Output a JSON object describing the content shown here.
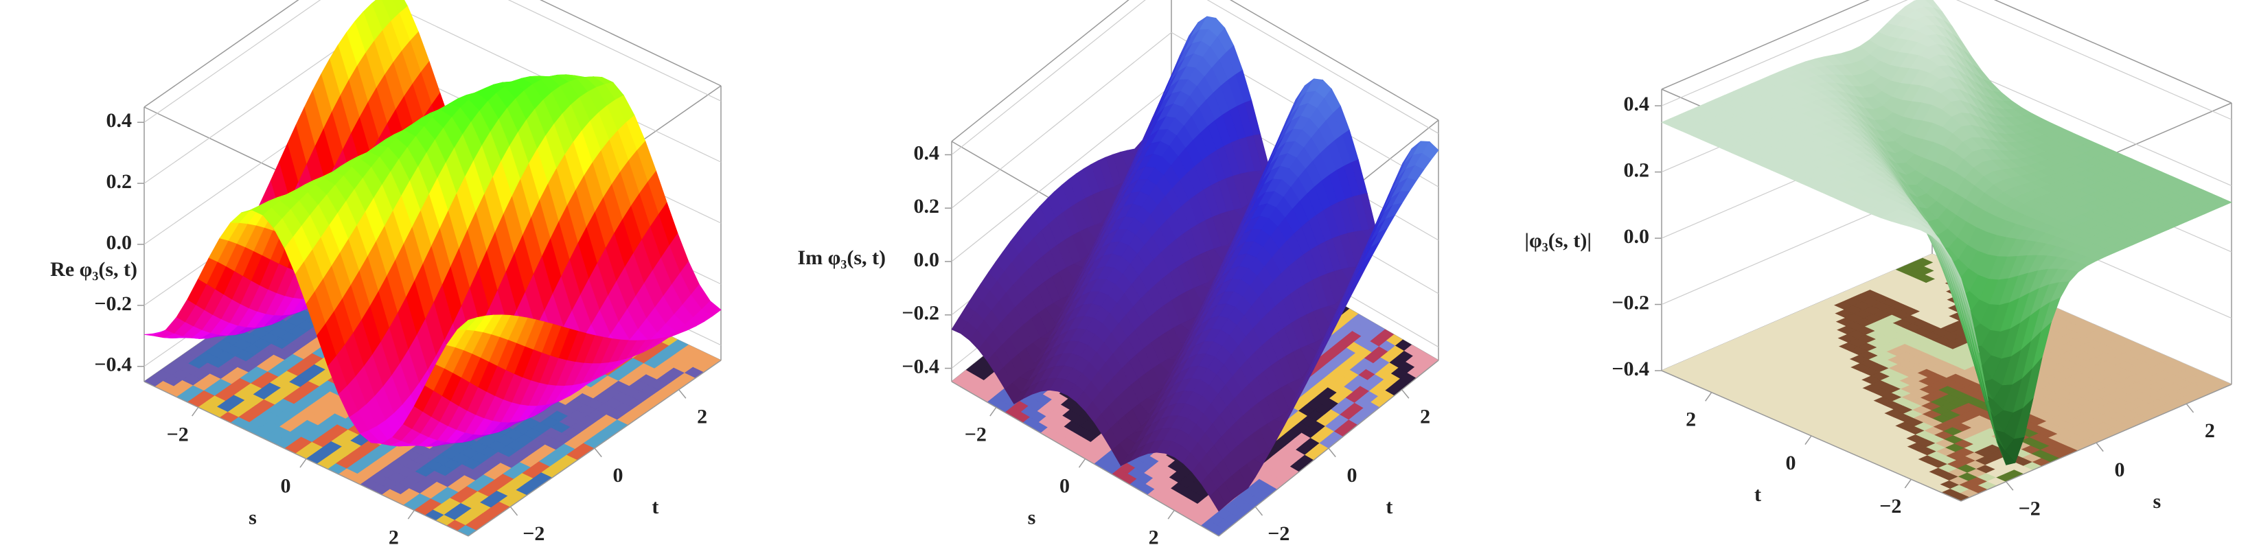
{
  "chart_data": [
    {
      "type": "surface3d",
      "xlabel": "s",
      "ylabel": "t",
      "zlabel": "Re φ₃(s, t)",
      "xlim": [
        -3,
        3
      ],
      "ylim": [
        -3,
        3
      ],
      "zlim": [
        -0.45,
        0.45
      ],
      "xticks": [
        {
          "value": -2,
          "label": "−2"
        },
        0,
        2
      ],
      "yticks": [
        {
          "value": -2,
          "label": "−2"
        },
        0,
        2
      ],
      "zticks": [
        {
          "value": -0.4,
          "label": "−0.4"
        },
        {
          "value": -0.2,
          "label": "−0.2"
        },
        {
          "value": 0,
          "label": "0.0"
        },
        0.2,
        0.4
      ],
      "grid": true
    },
    {
      "type": "surface3d",
      "xlabel": "s",
      "ylabel": "t",
      "zlabel": "Im φ₃(s, t)",
      "xlim": [
        -3,
        3
      ],
      "ylim": [
        -3,
        3
      ],
      "zlim": [
        -0.45,
        0.45
      ],
      "xticks": [
        {
          "value": -2,
          "label": "−2"
        },
        0,
        2
      ],
      "yticks": [
        {
          "value": -2,
          "label": "−2"
        },
        0,
        2
      ],
      "zticks": [
        {
          "value": -0.4,
          "label": "−0.4"
        },
        {
          "value": -0.2,
          "label": "−0.2"
        },
        {
          "value": 0,
          "label": "0.0"
        },
        0.2,
        0.4
      ],
      "grid": true
    },
    {
      "type": "surface3d",
      "xlabel": "s",
      "ylabel": "t",
      "zlabel": "|φ₃(s, t)|",
      "xlim": [
        -3,
        3
      ],
      "ylim": [
        -3,
        3
      ],
      "zlim": [
        -0.4,
        0.45
      ],
      "xticks": [
        {
          "value": -2,
          "label": "−2"
        },
        0,
        2
      ],
      "yticks": [
        {
          "value": -2,
          "label": "−2"
        },
        0,
        2
      ],
      "zticks": [
        {
          "value": -0.4,
          "label": "−0.4"
        },
        {
          "value": -0.2,
          "label": "−0.2"
        },
        {
          "value": 0,
          "label": "0.0"
        },
        0.2,
        0.4
      ],
      "grid": true
    }
  ]
}
